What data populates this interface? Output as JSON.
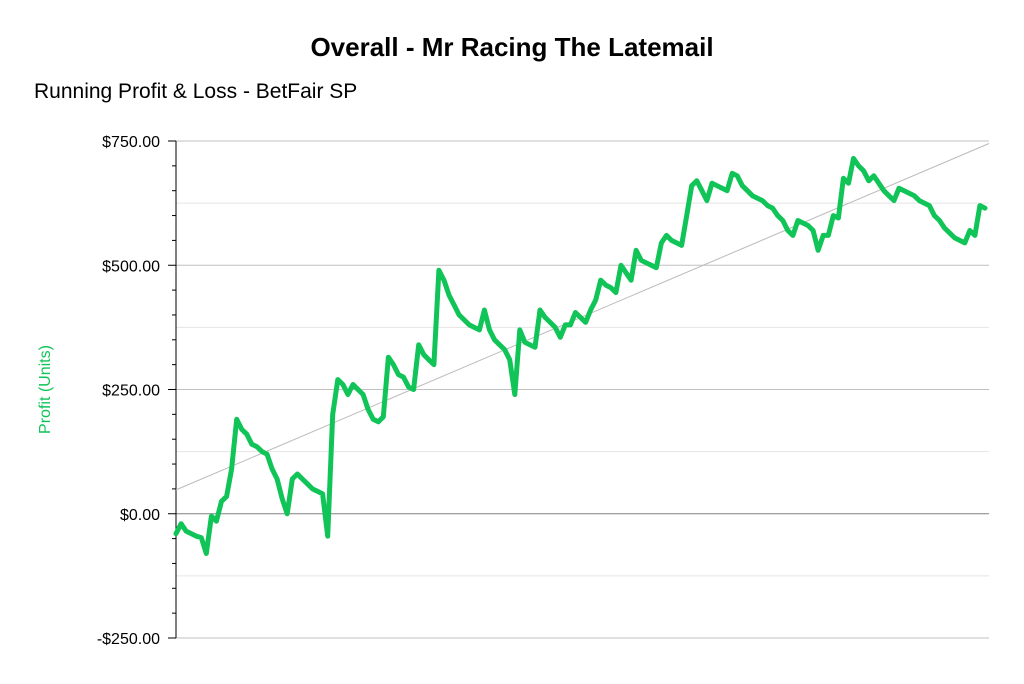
{
  "colors": {
    "series": "#10c458",
    "ylabel": "#10c458",
    "axis": "#000000",
    "grid_major": "#c0c0c0",
    "grid_minor": "#e4e4e4",
    "trendline": "#bbbbbb"
  },
  "chart_data": {
    "type": "line",
    "title": "Overall - Mr Racing The Latemail",
    "subtitle": "Running Profit & Loss - BetFair SP",
    "xlabel": "",
    "ylabel": "Profit (Units)",
    "ylim": [
      -250,
      750
    ],
    "y_ticks": [
      {
        "value": 750,
        "label": "$750.00"
      },
      {
        "value": 500,
        "label": "$500.00"
      },
      {
        "value": 250,
        "label": "$250.00"
      },
      {
        "value": 0,
        "label": "$0.00"
      },
      {
        "value": -250,
        "label": "-$250.00"
      }
    ],
    "grid": true,
    "legend": "none",
    "trendline": {
      "start": 48,
      "end": 745
    },
    "series": [
      {
        "values": [
          -40,
          -20,
          -35,
          -40,
          -45,
          -48,
          -80,
          -5,
          -15,
          25,
          35,
          90,
          190,
          170,
          160,
          140,
          135,
          125,
          120,
          90,
          70,
          30,
          0,
          70,
          80,
          70,
          60,
          50,
          45,
          40,
          -45,
          200,
          270,
          260,
          240,
          260,
          250,
          240,
          210,
          190,
          185,
          195,
          315,
          300,
          280,
          275,
          255,
          250,
          340,
          320,
          310,
          300,
          490,
          470,
          440,
          420,
          400,
          390,
          380,
          375,
          370,
          410,
          370,
          350,
          340,
          330,
          310,
          240,
          370,
          345,
          340,
          335,
          410,
          395,
          385,
          375,
          355,
          380,
          380,
          405,
          395,
          385,
          410,
          430,
          470,
          460,
          455,
          445,
          500,
          485,
          470,
          530,
          510,
          505,
          500,
          495,
          545,
          560,
          550,
          545,
          540,
          600,
          660,
          670,
          650,
          630,
          665,
          660,
          655,
          650,
          685,
          680,
          660,
          650,
          640,
          635,
          630,
          620,
          615,
          600,
          590,
          570,
          560,
          590,
          585,
          580,
          570,
          530,
          560,
          560,
          600,
          595,
          675,
          665,
          715,
          700,
          690,
          670,
          680,
          665,
          650,
          640,
          630,
          655,
          650,
          645,
          640,
          630,
          625,
          620,
          600,
          590,
          575,
          565,
          555,
          550,
          545,
          570,
          560,
          620,
          615
        ]
      }
    ]
  }
}
